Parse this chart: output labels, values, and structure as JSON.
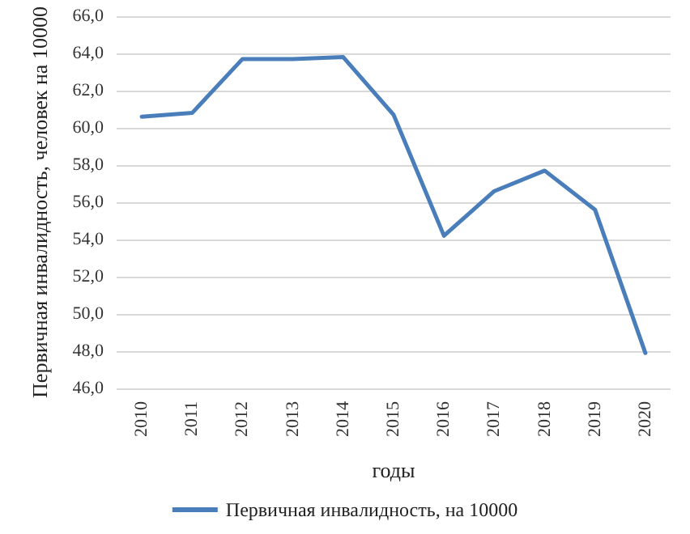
{
  "chart_data": {
    "type": "line",
    "xlabel": "годы",
    "ylabel": "Первичная инвалидность, человек на 10000",
    "categories": [
      "2010",
      "2011",
      "2012",
      "2013",
      "2014",
      "2015",
      "2016",
      "2017",
      "2018",
      "2019",
      "2020"
    ],
    "series": [
      {
        "name": "Первичная инвалидность, на 10000",
        "color": "#4a7ebb",
        "values": [
          60.6,
          60.8,
          63.7,
          63.7,
          63.8,
          60.7,
          54.2,
          56.6,
          57.7,
          55.6,
          47.9
        ]
      }
    ],
    "ylim": [
      46,
      66
    ],
    "yticks": [
      {
        "value": 46,
        "label": "46,0"
      },
      {
        "value": 48,
        "label": "48,0"
      },
      {
        "value": 50,
        "label": "50,0"
      },
      {
        "value": 52,
        "label": "52,0"
      },
      {
        "value": 54,
        "label": "54,0"
      },
      {
        "value": 56,
        "label": "56,0"
      },
      {
        "value": 58,
        "label": "58,0"
      },
      {
        "value": 60,
        "label": "60,0"
      },
      {
        "value": 62,
        "label": "62,0"
      },
      {
        "value": 64,
        "label": "64,0"
      },
      {
        "value": 66,
        "label": "66,0"
      }
    ],
    "grid": "y",
    "legend": "bottom",
    "marker": "none",
    "line_style": "solid"
  }
}
